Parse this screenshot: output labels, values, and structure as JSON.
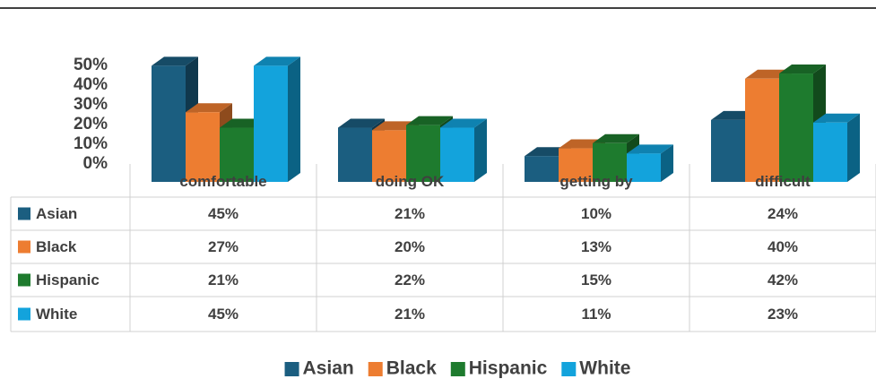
{
  "chart_data": {
    "type": "bar3d",
    "categories": [
      "comfortable",
      "doing OK",
      "getting by",
      "difficult"
    ],
    "series": [
      {
        "name": "Asian",
        "color": "#1b5e80",
        "values": [
          45,
          21,
          10,
          24
        ],
        "value_labels": [
          "45%",
          "21%",
          "10%",
          "24%"
        ]
      },
      {
        "name": "Black",
        "color": "#ed7d31",
        "values": [
          27,
          20,
          13,
          40
        ],
        "value_labels": [
          "27%",
          "20%",
          "13%",
          "40%"
        ]
      },
      {
        "name": "Hispanic",
        "color": "#1e7b2e",
        "values": [
          21,
          22,
          15,
          42
        ],
        "value_labels": [
          "21%",
          "22%",
          "15%",
          "42%"
        ]
      },
      {
        "name": "White",
        "color": "#13a3dc",
        "values": [
          45,
          21,
          11,
          23
        ],
        "value_labels": [
          "45%",
          "21%",
          "11%",
          "23%"
        ]
      }
    ],
    "ylim": [
      0,
      50
    ],
    "yticks": [
      {
        "value": 0,
        "label": "0%"
      },
      {
        "value": 10,
        "label": "10%"
      },
      {
        "value": 20,
        "label": "20%"
      },
      {
        "value": 30,
        "label": "30%"
      },
      {
        "value": 40,
        "label": "40%"
      },
      {
        "value": 50,
        "label": "50%"
      }
    ],
    "legend": "bottom"
  }
}
